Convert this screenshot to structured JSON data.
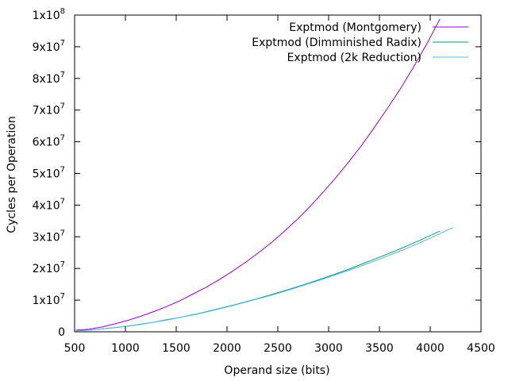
{
  "chart_data": {
    "type": "line",
    "title": "",
    "xlabel": "Operand size (bits)",
    "ylabel": "Cycles per Operation",
    "xlim": [
      500,
      4500
    ],
    "ylim": [
      0,
      100000000
    ],
    "grid": false,
    "legend_position": "top-right",
    "x_ticks": [
      {
        "value": 500,
        "label": "500"
      },
      {
        "value": 1000,
        "label": "1000"
      },
      {
        "value": 1500,
        "label": "1500"
      },
      {
        "value": 2000,
        "label": "2000"
      },
      {
        "value": 2500,
        "label": "2500"
      },
      {
        "value": 3000,
        "label": "3000"
      },
      {
        "value": 3500,
        "label": "3500"
      },
      {
        "value": 4000,
        "label": "4000"
      },
      {
        "value": 4500,
        "label": "4500"
      }
    ],
    "y_ticks": [
      {
        "value": 0,
        "mantissa": "0",
        "exponent": ""
      },
      {
        "value": 10000000,
        "mantissa": "1x10",
        "exponent": "7"
      },
      {
        "value": 20000000,
        "mantissa": "2x10",
        "exponent": "7"
      },
      {
        "value": 30000000,
        "mantissa": "3x10",
        "exponent": "7"
      },
      {
        "value": 40000000,
        "mantissa": "4x10",
        "exponent": "7"
      },
      {
        "value": 50000000,
        "mantissa": "5x10",
        "exponent": "7"
      },
      {
        "value": 60000000,
        "mantissa": "6x10",
        "exponent": "7"
      },
      {
        "value": 70000000,
        "mantissa": "7x10",
        "exponent": "7"
      },
      {
        "value": 80000000,
        "mantissa": "8x10",
        "exponent": "7"
      },
      {
        "value": 90000000,
        "mantissa": "9x10",
        "exponent": "7"
      },
      {
        "value": 100000000,
        "mantissa": "1x10",
        "exponent": "8"
      }
    ],
    "series": [
      {
        "name": "Exptmod (Montgomery)",
        "color": "#9400d3",
        "x": [
          512,
          640,
          768,
          896,
          1024,
          1152,
          1280,
          1408,
          1536,
          1664,
          1792,
          1920,
          2048,
          2176,
          2304,
          2432,
          2560,
          2688,
          2816,
          2944,
          3072,
          3200,
          3328,
          3456,
          3584,
          3712,
          3840,
          3968,
          4096
        ],
        "y": [
          500000,
          800000,
          1500000,
          2500000,
          3600000,
          4900000,
          6400000,
          8000000,
          9800000,
          11900000,
          14000000,
          16400000,
          19000000,
          21800000,
          24800000,
          28000000,
          31600000,
          35400000,
          39500000,
          44000000,
          48700000,
          53700000,
          59000000,
          64800000,
          70800000,
          77000000,
          83800000,
          91000000,
          98800000
        ]
      },
      {
        "name": "Exptmod (Dimminished Radix)",
        "color": "#009e73",
        "x": [
          512,
          640,
          768,
          896,
          1024,
          1152,
          1280,
          1408,
          1536,
          1664,
          1792,
          1920,
          2048,
          2176,
          2304,
          2432,
          2560,
          2688,
          2816,
          2944,
          3072,
          3200,
          3328,
          3456,
          3584,
          3712,
          3840,
          3968,
          4096
        ],
        "y": [
          300000,
          500000,
          900000,
          1300000,
          1800000,
          2400000,
          3000000,
          3800000,
          4500000,
          5400000,
          6300000,
          7300000,
          8300000,
          9400000,
          10500000,
          11700000,
          12900000,
          14200000,
          15500000,
          16900000,
          18300000,
          19800000,
          21400000,
          23000000,
          24600000,
          26300000,
          28100000,
          29900000,
          31800000
        ]
      },
      {
        "name": "Exptmod (2k Reduction)",
        "color": "#56b4e9",
        "x": [
          512,
          640,
          768,
          896,
          1024,
          1152,
          1280,
          1408,
          1536,
          1664,
          1792,
          1920,
          2048,
          2176,
          2304,
          2432,
          2560,
          2688,
          2816,
          2944,
          3072,
          3200,
          3328,
          3456,
          3584,
          3712,
          3840,
          3968,
          4096,
          4224
        ],
        "y": [
          300000,
          500000,
          900000,
          1300000,
          1800000,
          2300000,
          3000000,
          3700000,
          4500000,
          5300000,
          6200000,
          7200000,
          8200000,
          9300000,
          10400000,
          11500000,
          12700000,
          14000000,
          15300000,
          16600000,
          18000000,
          19400000,
          20900000,
          22400000,
          24000000,
          25600000,
          27300000,
          29100000,
          31000000,
          32900000
        ]
      }
    ]
  }
}
